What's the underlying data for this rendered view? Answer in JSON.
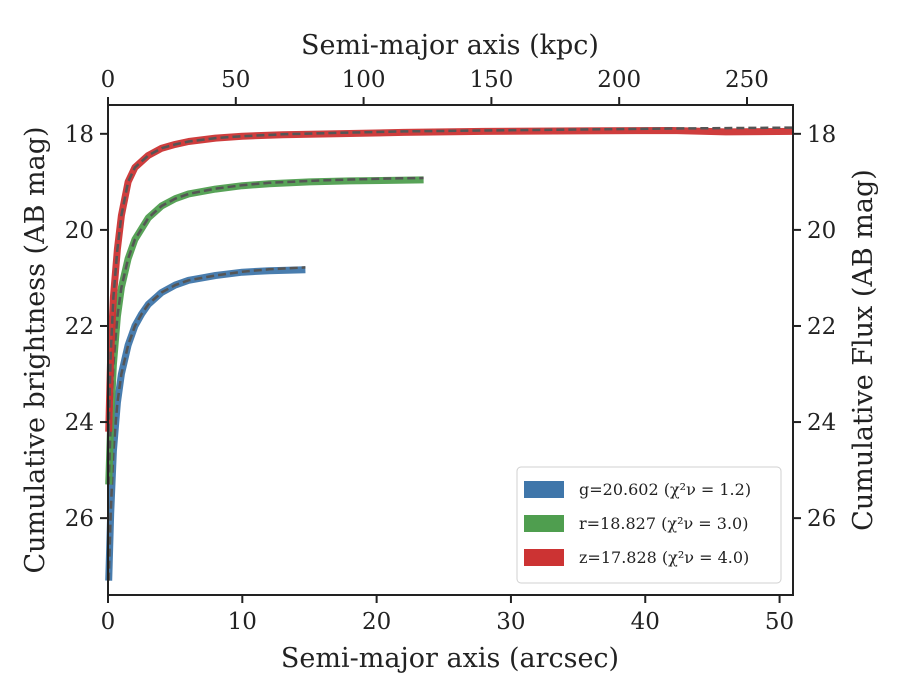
{
  "chart_data": {
    "type": "line",
    "title": "",
    "xlabel": "Semi-major axis (arcsec)",
    "x2label": "Semi-major axis (kpc)",
    "ylabel": "Cumulative brightness (AB mag)",
    "y2label": "Cumulative Flux (AB mag)",
    "xlim": [
      0,
      51
    ],
    "x2lim": [
      0,
      268
    ],
    "ylim": [
      27.6,
      17.4
    ],
    "y_inverted": true,
    "xticks": [
      "0",
      "10",
      "20",
      "30",
      "40",
      "50"
    ],
    "x2ticks": [
      "0",
      "50",
      "100",
      "150",
      "200",
      "250"
    ],
    "yticks": [
      "18",
      "20",
      "22",
      "24",
      "26"
    ],
    "y2ticks": [
      "18",
      "20",
      "22",
      "24",
      "26"
    ],
    "grid": false,
    "legend_position": "lower-right",
    "series": [
      {
        "name": "g=20.602 (χ²ν = 1.2)",
        "color": "#3f76aa",
        "x": [
          0.05,
          0.2,
          0.4,
          0.7,
          1.0,
          1.5,
          2.0,
          2.5,
          3.0,
          4.0,
          5.0,
          6.0,
          7.0,
          8.0,
          10.0,
          12.0,
          14.7
        ],
        "values": [
          27.3,
          25.9,
          24.6,
          23.6,
          23.0,
          22.4,
          22.0,
          21.75,
          21.55,
          21.3,
          21.15,
          21.05,
          21.0,
          20.95,
          20.88,
          20.85,
          20.83
        ],
        "model": [
          27.3,
          25.9,
          24.6,
          23.6,
          23.0,
          22.4,
          22.0,
          21.75,
          21.55,
          21.3,
          21.15,
          21.05,
          21.0,
          20.95,
          20.87,
          20.82,
          20.78
        ]
      },
      {
        "name": "r=18.827 (χ²ν = 3.0)",
        "color": "#4f9e4f",
        "x": [
          0.05,
          0.2,
          0.4,
          0.7,
          1.0,
          1.5,
          2.0,
          3.0,
          4.0,
          5.0,
          6.0,
          8.0,
          10.0,
          12.0,
          15.0,
          18.0,
          21.0,
          23.5
        ],
        "values": [
          25.3,
          24.0,
          22.8,
          21.8,
          21.2,
          20.6,
          20.2,
          19.75,
          19.5,
          19.35,
          19.25,
          19.15,
          19.08,
          19.04,
          19.0,
          18.98,
          18.97,
          18.96
        ],
        "model": [
          25.3,
          24.0,
          22.8,
          21.8,
          21.2,
          20.6,
          20.2,
          19.75,
          19.5,
          19.35,
          19.25,
          19.14,
          19.07,
          19.02,
          18.98,
          18.95,
          18.93,
          18.92
        ]
      },
      {
        "name": "z=17.828 (χ²ν = 4.0)",
        "color": "#cc3333",
        "x": [
          0.05,
          0.2,
          0.4,
          0.7,
          1.0,
          1.5,
          2.0,
          3.0,
          4.0,
          5.0,
          6.0,
          8.0,
          10.0,
          13.0,
          17.0,
          22.0,
          28.0,
          35.0,
          42.0,
          46.0,
          51.0
        ],
        "values": [
          24.2,
          22.6,
          21.4,
          20.4,
          19.7,
          19.0,
          18.7,
          18.45,
          18.3,
          18.22,
          18.16,
          18.09,
          18.05,
          18.02,
          18.0,
          17.97,
          17.95,
          17.94,
          17.93,
          17.96,
          17.95
        ],
        "model": [
          24.2,
          22.6,
          21.4,
          20.4,
          19.7,
          19.0,
          18.7,
          18.45,
          18.3,
          18.22,
          18.16,
          18.09,
          18.05,
          18.01,
          17.98,
          17.95,
          17.93,
          17.91,
          17.89,
          17.88,
          17.87
        ]
      }
    ]
  }
}
